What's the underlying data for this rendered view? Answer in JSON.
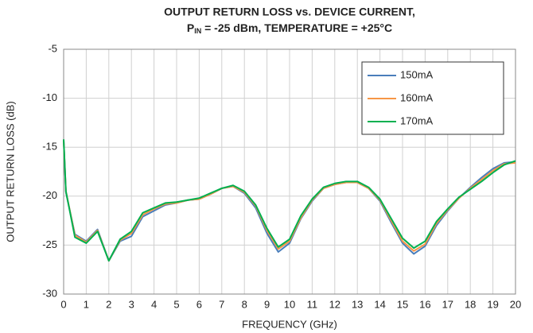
{
  "chart_data": {
    "type": "line",
    "title": "OUTPUT RETURN LOSS vs. DEVICE CURRENT,",
    "subtitle": [
      "P",
      "IN",
      " = -25 dBm, TEMPERATURE = +25°C"
    ],
    "x_label": "FREQUENCY (GHz)",
    "y_label": "OUTPUT RETURN LOSS (dB)",
    "x": [
      0,
      0.1,
      0.5,
      1,
      1.5,
      2,
      2.5,
      3,
      3.5,
      4,
      4.5,
      5,
      5.5,
      6,
      6.5,
      7,
      7.5,
      8,
      8.5,
      9,
      9.5,
      10,
      10.5,
      11,
      11.5,
      12,
      12.5,
      13,
      13.5,
      14,
      14.5,
      15,
      15.5,
      16,
      16.5,
      17,
      17.5,
      18,
      18.5,
      19,
      19.5,
      20
    ],
    "series": [
      {
        "name": "150mA",
        "color": "#4a7ebb",
        "values": [
          -14.3,
          -19.6,
          -23.9,
          -24.6,
          -23.4,
          -26.6,
          -24.6,
          -24.1,
          -22.1,
          -21.5,
          -20.9,
          -20.7,
          -20.4,
          -20.3,
          -19.8,
          -19.2,
          -19.0,
          -19.7,
          -21.2,
          -23.8,
          -25.7,
          -24.8,
          -22.3,
          -20.5,
          -19.2,
          -18.8,
          -18.6,
          -18.6,
          -19.2,
          -20.5,
          -22.7,
          -24.8,
          -25.9,
          -25.1,
          -23.0,
          -21.5,
          -20.2,
          -19.1,
          -18.1,
          -17.2,
          -16.6,
          -16.5
        ]
      },
      {
        "name": "160mA",
        "color": "#f79646",
        "values": [
          -14.3,
          -19.5,
          -24.0,
          -24.7,
          -23.5,
          -26.6,
          -24.5,
          -23.8,
          -21.9,
          -21.3,
          -20.8,
          -20.7,
          -20.4,
          -20.3,
          -19.8,
          -19.2,
          -19.0,
          -19.6,
          -21.0,
          -23.5,
          -25.4,
          -24.6,
          -22.2,
          -20.4,
          -19.2,
          -18.8,
          -18.6,
          -18.6,
          -19.2,
          -20.4,
          -22.5,
          -24.6,
          -25.6,
          -24.9,
          -22.8,
          -21.4,
          -20.2,
          -19.2,
          -18.3,
          -17.4,
          -16.7,
          -16.6
        ]
      },
      {
        "name": "170mA",
        "color": "#00b050",
        "values": [
          -14.2,
          -19.5,
          -24.2,
          -24.8,
          -23.6,
          -26.6,
          -24.4,
          -23.6,
          -21.7,
          -21.2,
          -20.7,
          -20.6,
          -20.4,
          -20.2,
          -19.7,
          -19.2,
          -18.9,
          -19.5,
          -20.9,
          -23.3,
          -25.2,
          -24.4,
          -22.0,
          -20.3,
          -19.1,
          -18.7,
          -18.5,
          -18.5,
          -19.1,
          -20.3,
          -22.3,
          -24.3,
          -25.3,
          -24.6,
          -22.6,
          -21.3,
          -20.1,
          -19.3,
          -18.5,
          -17.6,
          -16.8,
          -16.4
        ]
      }
    ],
    "xlim": [
      0,
      20
    ],
    "xticks": [
      0,
      1,
      2,
      3,
      4,
      5,
      6,
      7,
      8,
      9,
      10,
      11,
      12,
      13,
      14,
      15,
      16,
      17,
      18,
      19,
      20
    ],
    "ylim": [
      -30,
      -5
    ],
    "yticks": [
      -30,
      -25,
      -20,
      -15,
      -10,
      -5
    ],
    "grid": true,
    "legend": "upper right"
  }
}
